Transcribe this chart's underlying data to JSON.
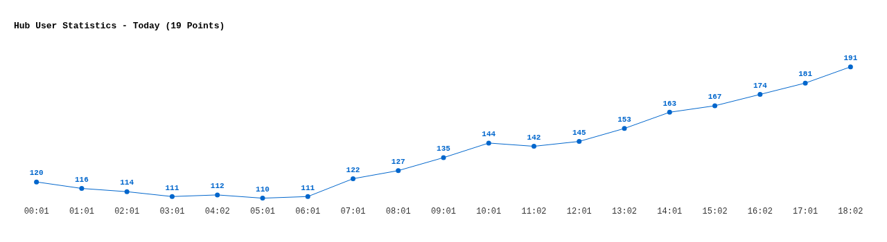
{
  "chart_data": {
    "type": "line",
    "title": "Hub User Statistics - Today (19 Points)",
    "categories": [
      "00:01",
      "01:01",
      "02:01",
      "03:01",
      "04:02",
      "05:01",
      "06:01",
      "07:01",
      "08:01",
      "09:01",
      "10:01",
      "11:02",
      "12:01",
      "13:02",
      "14:01",
      "15:02",
      "16:02",
      "17:01",
      "18:02"
    ],
    "series": [
      {
        "color": "#0066cc",
        "values": [
          120,
          116,
          114,
          111,
          112,
          110,
          111,
          122,
          127,
          135,
          144,
          142,
          145,
          153,
          163,
          167,
          174,
          181,
          191
        ]
      }
    ],
    "data_labels": true,
    "marker": "circle",
    "grid": false,
    "legend": false
  }
}
